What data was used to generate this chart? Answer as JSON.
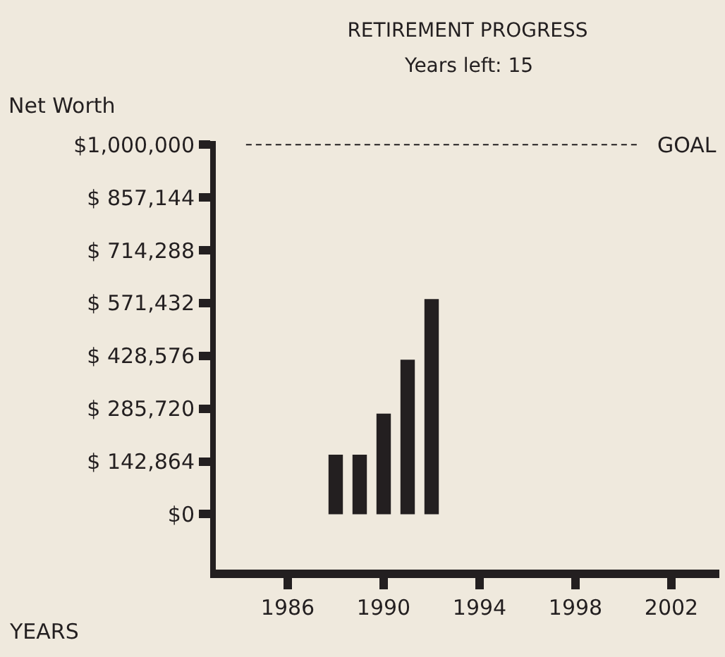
{
  "chart_data": {
    "type": "bar",
    "title": "RETIREMENT PROGRESS",
    "subtitle": "Years left: 15",
    "ylabel": "Net Worth",
    "xlabel": "YEARS",
    "x": [
      1988,
      1989,
      1990,
      1991,
      1992
    ],
    "values": [
      161000,
      161000,
      272000,
      418000,
      582000
    ],
    "color": "#231f20",
    "xlim": [
      1983,
      2004
    ],
    "xticks": [
      1986,
      1990,
      1994,
      1998,
      2002
    ],
    "ylim": [
      -150000,
      1010000
    ],
    "yticks": [
      {
        "value": 0,
        "label": "$0"
      },
      {
        "value": 142864,
        "label": "$ 142,864"
      },
      {
        "value": 285720,
        "label": "$ 285,720"
      },
      {
        "value": 428576,
        "label": "$ 428,576"
      },
      {
        "value": 571432,
        "label": "$ 571,432"
      },
      {
        "value": 714288,
        "label": "$ 714,288"
      },
      {
        "value": 857144,
        "label": "$ 857,144"
      },
      {
        "value": 1000000,
        "label": "$1,000,000"
      }
    ],
    "ref_lines": [
      {
        "axis": "y",
        "value": 1000000,
        "label": "GOAL",
        "line_style": "dashed",
        "color": "#231f20"
      }
    ],
    "grid": false
  }
}
